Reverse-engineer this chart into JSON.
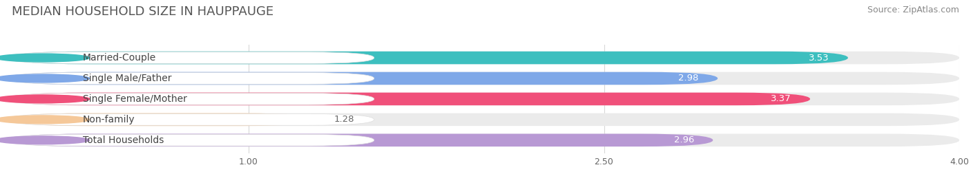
{
  "title": "MEDIAN HOUSEHOLD SIZE IN HAUPPAUGE",
  "source": "Source: ZipAtlas.com",
  "categories": [
    "Married-Couple",
    "Single Male/Father",
    "Single Female/Mother",
    "Non-family",
    "Total Households"
  ],
  "values": [
    3.53,
    2.98,
    3.37,
    1.28,
    2.96
  ],
  "bar_colors": [
    "#3dbfbf",
    "#7fa8e8",
    "#f0507a",
    "#f5c899",
    "#b899d4"
  ],
  "xlim_data": [
    0.0,
    4.0
  ],
  "xticks": [
    1.0,
    2.5,
    4.0
  ],
  "xticklabels": [
    "1.00",
    "2.50",
    "4.00"
  ],
  "title_fontsize": 13,
  "source_fontsize": 9,
  "label_fontsize": 10,
  "value_fontsize": 9.5,
  "bar_height": 0.62,
  "background_color": "#ffffff",
  "bar_bg_color": "#ebebeb",
  "value_color_inside": "#ffffff",
  "value_color_outside": "#666666",
  "label_text_color": "#444444",
  "title_color": "#555555"
}
